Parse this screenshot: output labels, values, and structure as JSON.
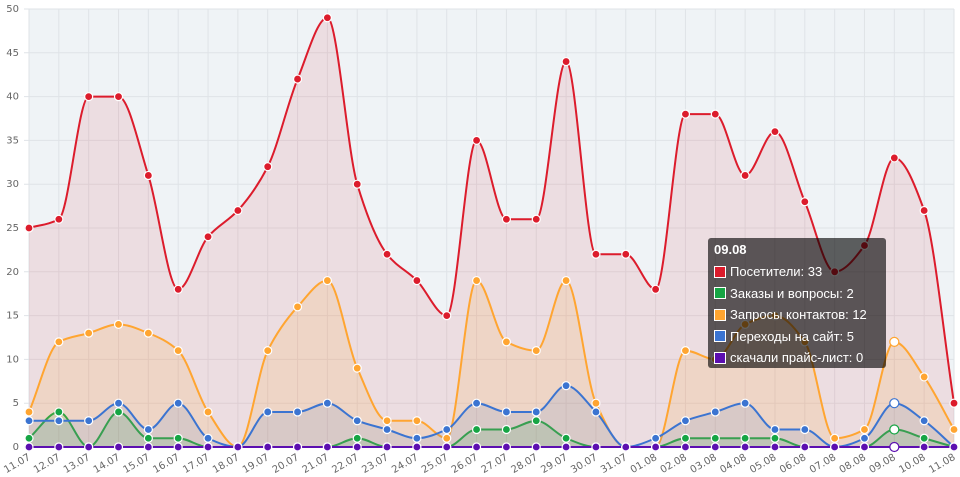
{
  "chart_data": {
    "type": "area",
    "x": [
      "11.07",
      "12.07",
      "13.07",
      "14.07",
      "15.07",
      "16.07",
      "17.07",
      "18.07",
      "19.07",
      "20.07",
      "21.07",
      "22.07",
      "23.07",
      "24.07",
      "25.07",
      "26.07",
      "27.07",
      "28.07",
      "29.07",
      "30.07",
      "31.07",
      "01.08",
      "02.08",
      "03.08",
      "04.08",
      "05.08",
      "06.08",
      "07.08",
      "08.08",
      "09.08",
      "10.08",
      "11.08"
    ],
    "ylim": [
      0,
      50
    ],
    "yticks": [
      0,
      5,
      10,
      15,
      20,
      25,
      30,
      35,
      40,
      45,
      50
    ],
    "grid": true,
    "legend": "none",
    "series": [
      {
        "name": "Посетители",
        "color": "#dc1c2c",
        "fill": "rgba(220,28,44,0.10)",
        "values": [
          25,
          26,
          40,
          40,
          31,
          18,
          24,
          27,
          32,
          42,
          49,
          30,
          22,
          19,
          15,
          35,
          26,
          26,
          44,
          22,
          22,
          18,
          38,
          38,
          31,
          36,
          28,
          20,
          23,
          33,
          27,
          5
        ]
      },
      {
        "name": "Заказы и вопросы",
        "color": "#16a544",
        "fill": "rgba(22,165,68,0.15)",
        "values": [
          1,
          4,
          0,
          4,
          1,
          1,
          0,
          0,
          0,
          0,
          0,
          1,
          0,
          0,
          0,
          2,
          2,
          3,
          1,
          0,
          0,
          0,
          1,
          1,
          1,
          1,
          0,
          0,
          0,
          2,
          1,
          0
        ]
      },
      {
        "name": "Запросы контактов",
        "color": "#ffa531",
        "fill": "rgba(255,165,49,0.15)",
        "values": [
          4,
          12,
          13,
          14,
          13,
          11,
          4,
          0,
          11,
          16,
          19,
          9,
          3,
          3,
          1,
          19,
          12,
          11,
          19,
          5,
          0,
          0,
          11,
          10,
          14,
          15,
          12,
          1,
          2,
          12,
          8,
          2
        ]
      },
      {
        "name": "Переходы на сайт",
        "color": "#3b74d1",
        "fill": "rgba(59,116,209,0.12)",
        "values": [
          3,
          3,
          3,
          5,
          2,
          5,
          1,
          0,
          4,
          4,
          5,
          3,
          2,
          1,
          2,
          5,
          4,
          4,
          7,
          4,
          0,
          1,
          3,
          4,
          5,
          2,
          2,
          0,
          1,
          5,
          3,
          0
        ]
      },
      {
        "name": "скачали прайс-лист",
        "color": "#5c0fb0",
        "fill": "rgba(92,15,176,0.15)",
        "values": [
          0,
          0,
          0,
          0,
          0,
          0,
          0,
          0,
          0,
          0,
          0,
          0,
          0,
          0,
          0,
          0,
          0,
          0,
          0,
          0,
          0,
          0,
          0,
          0,
          0,
          0,
          0,
          0,
          0,
          0,
          0,
          0
        ]
      }
    ]
  },
  "tooltip": {
    "title": "09.08",
    "rows": [
      {
        "label": "Посетители: 33",
        "color": "#dc1c2c"
      },
      {
        "label": "Заказы и вопросы: 2",
        "color": "#16a544"
      },
      {
        "label": "Запросы контактов: 12",
        "color": "#ffa531"
      },
      {
        "label": "Переходы на сайт: 5",
        "color": "#3b74d1"
      },
      {
        "label": "скачали прайс-лист: 0",
        "color": "#5c0fb0"
      }
    ],
    "active_index": 29
  },
  "colors": {
    "plot_background": "#eff3f6",
    "grid": "#dfe3e7"
  }
}
